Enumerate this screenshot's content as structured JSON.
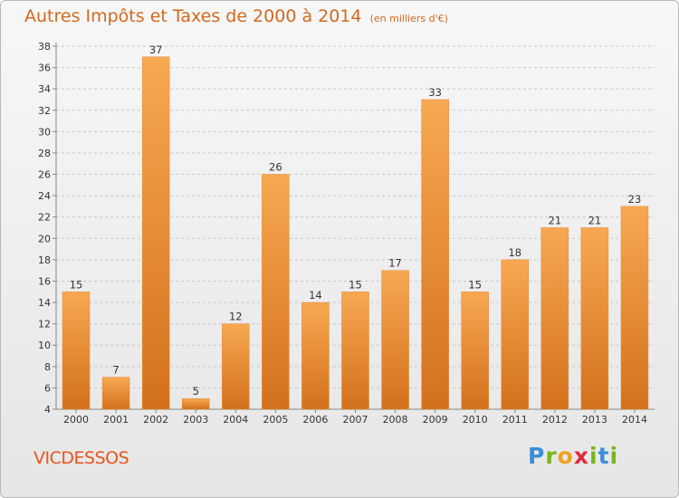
{
  "title": "Autres Impôts et Taxes de 2000 à 2014",
  "unit": "(en milliers d'€)",
  "commune": "VICDESSOS",
  "logo": {
    "letters": [
      "P",
      "r",
      "o",
      "x",
      "i",
      "t",
      "i"
    ],
    "colors": [
      "#3a8ed9",
      "#7ab51d",
      "#f0a020",
      "#e02c3c",
      "#7ab51d",
      "#3a8ed9",
      "#7ab51d"
    ]
  },
  "colors": {
    "bar_top": "#f8a852",
    "bar_bottom": "#d3711c",
    "accent": "#d2691e"
  },
  "chart_data": {
    "type": "bar",
    "title": "Autres Impôts et Taxes de 2000 à 2014",
    "categories": [
      "2000",
      "2001",
      "2002",
      "2003",
      "2004",
      "2005",
      "2006",
      "2007",
      "2008",
      "2009",
      "2010",
      "2011",
      "2012",
      "2013",
      "2014"
    ],
    "values": [
      15,
      7,
      37,
      5,
      12,
      26,
      14,
      15,
      17,
      33,
      15,
      18,
      21,
      21,
      23
    ],
    "ylim": [
      4,
      38
    ],
    "yticks": [
      4,
      6,
      8,
      10,
      12,
      14,
      16,
      18,
      20,
      22,
      24,
      26,
      28,
      30,
      32,
      34,
      36,
      38
    ],
    "grid": "horizontal dashed",
    "xlabel": "",
    "ylabel": ""
  }
}
